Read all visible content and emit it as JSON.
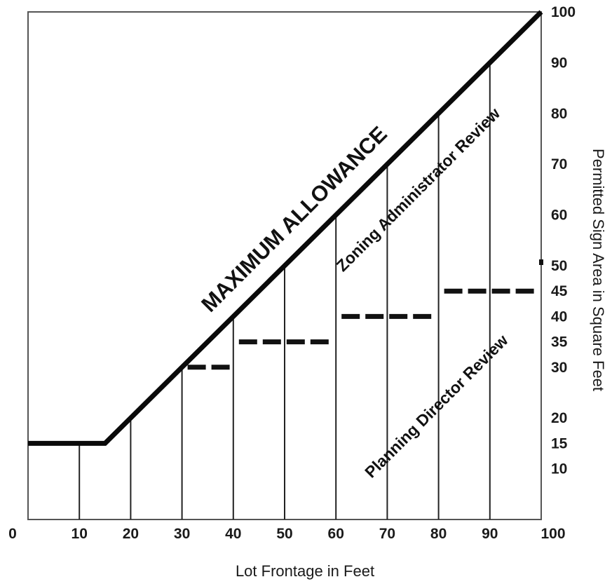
{
  "chart_data": {
    "type": "line",
    "xlabel": "Lot Frontage in Feet",
    "ylabel": "Permitted Sign Area in Square Feet",
    "xlim": [
      0,
      100
    ],
    "ylim": [
      0,
      100
    ],
    "grid": true,
    "x_ticks": [
      "0",
      "10",
      "20",
      "30",
      "40",
      "50",
      "60",
      "70",
      "80",
      "90",
      "100"
    ],
    "y_ticks": [
      {
        "value": 100,
        "label": "100"
      },
      {
        "value": 90,
        "label": "90"
      },
      {
        "value": 80,
        "label": "80"
      },
      {
        "value": 70,
        "label": "70"
      },
      {
        "value": 60,
        "label": "60"
      },
      {
        "value": 50,
        "label": "50"
      },
      {
        "value": 45,
        "label": "45"
      },
      {
        "value": 40,
        "label": "40"
      },
      {
        "value": 35,
        "label": "35"
      },
      {
        "value": 30,
        "label": "30"
      },
      {
        "value": 20,
        "label": "20"
      },
      {
        "value": 15,
        "label": "15"
      },
      {
        "value": 10,
        "label": "10"
      }
    ],
    "series": [
      {
        "x": [
          0,
          15,
          100
        ],
        "y": [
          15,
          15,
          100
        ],
        "style": "solid-thick"
      },
      {
        "steps": [
          {
            "x_start": 30,
            "x_end": 40,
            "y": 30
          },
          {
            "x_start": 40,
            "x_end": 60,
            "y": 35
          },
          {
            "x_start": 60,
            "x_end": 80,
            "y": 40
          },
          {
            "x_start": 80,
            "x_end": 100,
            "y": 45
          }
        ],
        "style": "dashed-step"
      }
    ],
    "annotations": [
      {
        "text": "MAXIMUM ALLOWANCE",
        "x": 45,
        "y": 57
      },
      {
        "text": "Zoning Administrator Review",
        "x": 71,
        "y": 66
      },
      {
        "text": "Planning Director Review",
        "x": 71,
        "y": 24
      }
    ]
  }
}
